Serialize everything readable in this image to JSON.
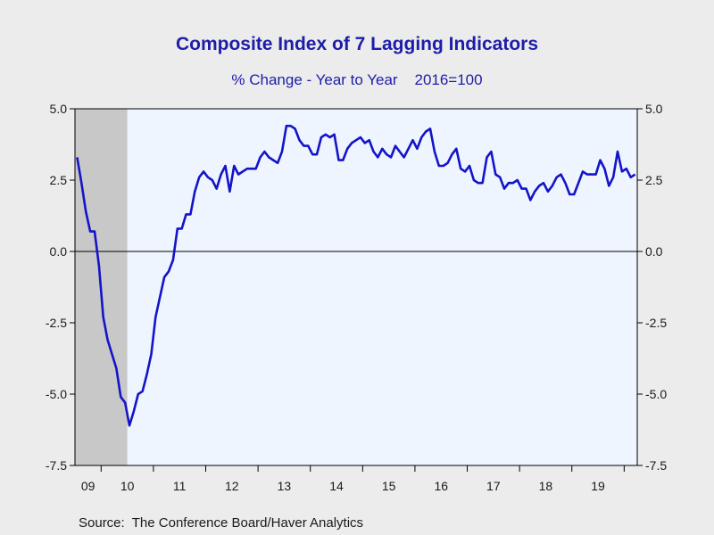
{
  "chart_data": {
    "type": "line",
    "title": "Composite Index of 7 Lagging Indicators",
    "subtitle": "% Change - Year to Year    2016=100",
    "source": "Source:  The Conference Board/Haver Analytics",
    "x_start": "2008-07",
    "x_labels": [
      "09",
      "10",
      "11",
      "12",
      "13",
      "14",
      "15",
      "16",
      "17",
      "18",
      "19"
    ],
    "y_ticks": [
      "5.0",
      "2.5",
      "0.0",
      "-2.5",
      "-5.0",
      "-7.5"
    ],
    "y_tick_values": [
      5.0,
      2.5,
      0.0,
      -2.5,
      -5.0,
      -7.5
    ],
    "ylim": [
      -7.5,
      5.0
    ],
    "axes": "left and right, same scale",
    "recession_shading": {
      "start": "2008-07",
      "end": "2009-06",
      "color": "#c8c8c8"
    },
    "series": [
      {
        "color": "#1414c8",
        "values": [
          3.3,
          2.4,
          1.4,
          0.7,
          0.7,
          -0.5,
          -2.3,
          -3.1,
          -3.6,
          -4.1,
          -5.1,
          -5.3,
          -6.1,
          -5.6,
          -5.0,
          -4.9,
          -4.3,
          -3.6,
          -2.3,
          -1.6,
          -0.9,
          -0.7,
          -0.3,
          0.8,
          0.8,
          1.3,
          1.3,
          2.1,
          2.6,
          2.8,
          2.6,
          2.5,
          2.2,
          2.7,
          3.0,
          2.1,
          3.0,
          2.7,
          2.8,
          2.9,
          2.9,
          2.9,
          3.3,
          3.5,
          3.3,
          3.2,
          3.1,
          3.5,
          4.4,
          4.4,
          4.3,
          3.9,
          3.7,
          3.7,
          3.4,
          3.4,
          4.0,
          4.1,
          4.0,
          4.1,
          3.2,
          3.2,
          3.6,
          3.8,
          3.9,
          4.0,
          3.8,
          3.9,
          3.5,
          3.3,
          3.6,
          3.4,
          3.3,
          3.7,
          3.5,
          3.3,
          3.6,
          3.9,
          3.6,
          4.0,
          4.2,
          4.3,
          3.5,
          3.0,
          3.0,
          3.1,
          3.4,
          3.6,
          2.9,
          2.8,
          3.0,
          2.5,
          2.4,
          2.4,
          3.3,
          3.5,
          2.7,
          2.6,
          2.2,
          2.4,
          2.4,
          2.5,
          2.2,
          2.2,
          1.8,
          2.1,
          2.3,
          2.4,
          2.1,
          2.3,
          2.6,
          2.7,
          2.4,
          2.0,
          2.0,
          2.4,
          2.8,
          2.7,
          2.7,
          2.7,
          3.2,
          2.9,
          2.3,
          2.6,
          3.5,
          2.8,
          2.9,
          2.6,
          2.7
        ]
      }
    ],
    "grid": false,
    "zero_line": true
  }
}
